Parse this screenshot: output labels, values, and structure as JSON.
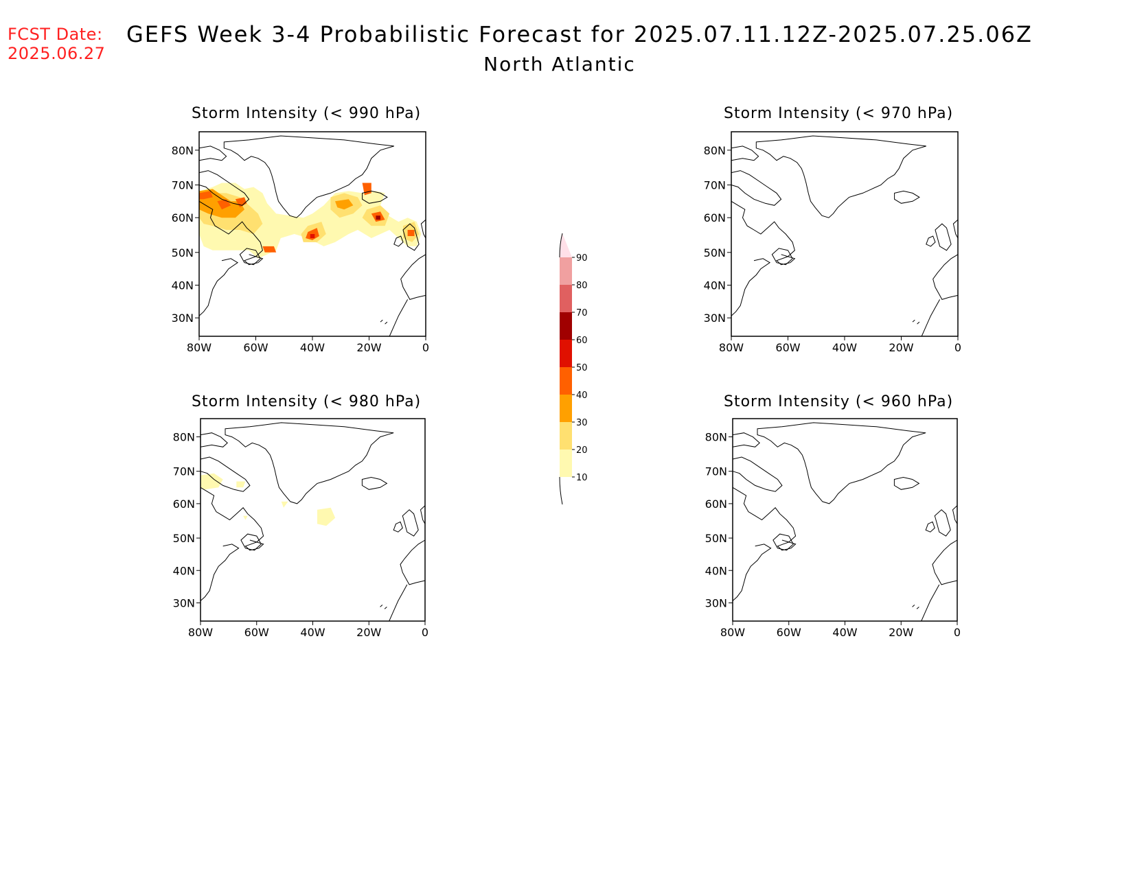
{
  "header": {
    "fcst_label": "FCST Date:",
    "fcst_date": "2025.06.27",
    "title": "GEFS Week 3-4 Probabilistic Forecast for 2025.07.11.12Z-2025.07.25.06Z",
    "region": "North Atlantic"
  },
  "panels": [
    {
      "title": "Storm Intensity (< 990 hPa)"
    },
    {
      "title": "Storm Intensity (< 970 hPa)"
    },
    {
      "title": "Storm Intensity (< 980 hPa)"
    },
    {
      "title": "Storm Intensity (< 960 hPa)"
    }
  ],
  "axes": {
    "lat_labels": [
      "80N",
      "70N",
      "60N",
      "50N",
      "40N",
      "30N"
    ],
    "lon_labels": [
      "80W",
      "60W",
      "40W",
      "20W",
      "0"
    ]
  },
  "colorbar": {
    "levels": [
      "10",
      "20",
      "30",
      "40",
      "50",
      "60",
      "70",
      "80",
      "90"
    ],
    "colors": [
      "#fff9b0",
      "#ffe070",
      "#ffa000",
      "#ff6000",
      "#e01000",
      "#a00000",
      "#e06060",
      "#f0a0a0",
      "#ffe0e8"
    ]
  }
}
